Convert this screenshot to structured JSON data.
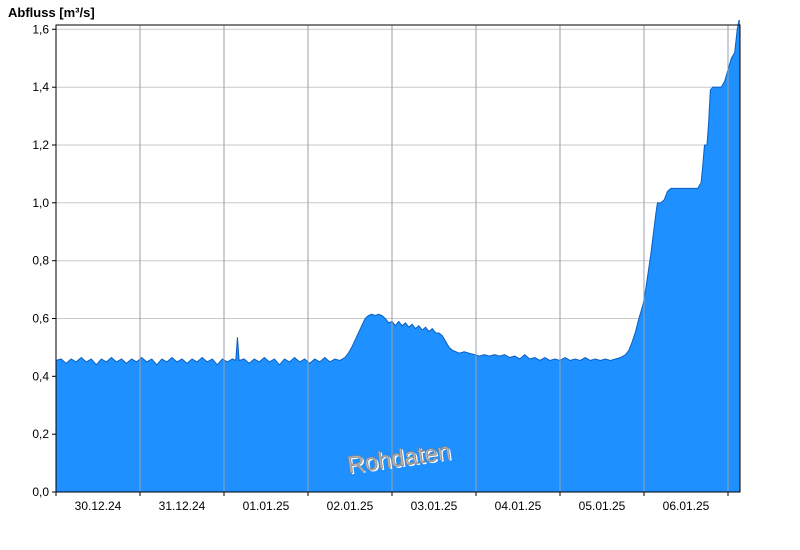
{
  "chart_data": {
    "type": "area",
    "title": "Abfluss [m³/s]",
    "ylabel": "Abfluss [m³/s]",
    "watermark": "Rohdaten",
    "series_name": "Abfluss",
    "xlim": [
      0,
      8.143
    ],
    "ylim": [
      0,
      1.615
    ],
    "x_unit": "days from 30.12.24 00:00",
    "grid": true,
    "y_ticks": [
      0,
      0.2,
      0.4,
      0.6,
      0.8,
      1.0,
      1.2,
      1.4,
      1.6
    ],
    "y_tick_labels": [
      "0,0",
      "0,2",
      "0,4",
      "0,6",
      "0,8",
      "1,0",
      "1,2",
      "1,4",
      "1,6"
    ],
    "x_day_boundaries": [
      0,
      1,
      2,
      3,
      4,
      5,
      6,
      7,
      8
    ],
    "x_label_centers": [
      0.5,
      1.5,
      2.5,
      3.5,
      4.5,
      5.5,
      6.5,
      7.5
    ],
    "x_tick_labels": [
      "30.12.24",
      "31.12.24",
      "01.01.25",
      "02.01.25",
      "03.01.25",
      "04.01.25",
      "05.01.25",
      "06.01.25"
    ],
    "colors": {
      "fill": "#1E90FF",
      "stroke": "#0C5FBF",
      "grid": "#c9c9c9",
      "vgrid": "#98a2ac",
      "axis": "#000000",
      "watermark_fill": "#b3b3b3",
      "watermark_stroke": "#7f7f7f"
    },
    "points": [
      [
        0.0,
        0.455
      ],
      [
        0.06,
        0.46
      ],
      [
        0.12,
        0.445
      ],
      [
        0.18,
        0.46
      ],
      [
        0.24,
        0.45
      ],
      [
        0.3,
        0.465
      ],
      [
        0.36,
        0.45
      ],
      [
        0.42,
        0.46
      ],
      [
        0.48,
        0.44
      ],
      [
        0.54,
        0.46
      ],
      [
        0.6,
        0.45
      ],
      [
        0.66,
        0.465
      ],
      [
        0.72,
        0.45
      ],
      [
        0.78,
        0.46
      ],
      [
        0.84,
        0.445
      ],
      [
        0.9,
        0.46
      ],
      [
        0.96,
        0.45
      ],
      [
        1.02,
        0.465
      ],
      [
        1.08,
        0.45
      ],
      [
        1.14,
        0.46
      ],
      [
        1.2,
        0.44
      ],
      [
        1.26,
        0.46
      ],
      [
        1.32,
        0.45
      ],
      [
        1.38,
        0.465
      ],
      [
        1.44,
        0.45
      ],
      [
        1.5,
        0.46
      ],
      [
        1.56,
        0.445
      ],
      [
        1.62,
        0.46
      ],
      [
        1.68,
        0.45
      ],
      [
        1.74,
        0.465
      ],
      [
        1.8,
        0.45
      ],
      [
        1.86,
        0.46
      ],
      [
        1.92,
        0.44
      ],
      [
        1.98,
        0.46
      ],
      [
        2.04,
        0.45
      ],
      [
        2.1,
        0.46
      ],
      [
        2.14,
        0.455
      ],
      [
        2.16,
        0.535
      ],
      [
        2.18,
        0.455
      ],
      [
        2.24,
        0.46
      ],
      [
        2.3,
        0.445
      ],
      [
        2.36,
        0.46
      ],
      [
        2.42,
        0.45
      ],
      [
        2.48,
        0.465
      ],
      [
        2.54,
        0.45
      ],
      [
        2.6,
        0.46
      ],
      [
        2.66,
        0.44
      ],
      [
        2.72,
        0.46
      ],
      [
        2.78,
        0.45
      ],
      [
        2.84,
        0.465
      ],
      [
        2.9,
        0.45
      ],
      [
        2.96,
        0.46
      ],
      [
        3.02,
        0.445
      ],
      [
        3.08,
        0.46
      ],
      [
        3.14,
        0.45
      ],
      [
        3.2,
        0.465
      ],
      [
        3.26,
        0.45
      ],
      [
        3.32,
        0.46
      ],
      [
        3.38,
        0.455
      ],
      [
        3.44,
        0.465
      ],
      [
        3.48,
        0.48
      ],
      [
        3.52,
        0.5
      ],
      [
        3.56,
        0.525
      ],
      [
        3.6,
        0.55
      ],
      [
        3.64,
        0.575
      ],
      [
        3.68,
        0.6
      ],
      [
        3.72,
        0.61
      ],
      [
        3.76,
        0.615
      ],
      [
        3.8,
        0.61
      ],
      [
        3.84,
        0.615
      ],
      [
        3.88,
        0.61
      ],
      [
        3.92,
        0.6
      ],
      [
        3.96,
        0.585
      ],
      [
        4.0,
        0.59
      ],
      [
        4.04,
        0.575
      ],
      [
        4.08,
        0.59
      ],
      [
        4.12,
        0.575
      ],
      [
        4.16,
        0.585
      ],
      [
        4.2,
        0.57
      ],
      [
        4.24,
        0.58
      ],
      [
        4.28,
        0.565
      ],
      [
        4.32,
        0.575
      ],
      [
        4.36,
        0.56
      ],
      [
        4.4,
        0.57
      ],
      [
        4.44,
        0.555
      ],
      [
        4.48,
        0.565
      ],
      [
        4.52,
        0.55
      ],
      [
        4.56,
        0.55
      ],
      [
        4.6,
        0.54
      ],
      [
        4.64,
        0.52
      ],
      [
        4.68,
        0.5
      ],
      [
        4.72,
        0.49
      ],
      [
        4.76,
        0.485
      ],
      [
        4.8,
        0.48
      ],
      [
        4.86,
        0.485
      ],
      [
        4.92,
        0.48
      ],
      [
        4.98,
        0.475
      ],
      [
        5.04,
        0.47
      ],
      [
        5.1,
        0.475
      ],
      [
        5.16,
        0.47
      ],
      [
        5.22,
        0.475
      ],
      [
        5.28,
        0.47
      ],
      [
        5.34,
        0.475
      ],
      [
        5.4,
        0.465
      ],
      [
        5.46,
        0.47
      ],
      [
        5.52,
        0.46
      ],
      [
        5.58,
        0.475
      ],
      [
        5.64,
        0.46
      ],
      [
        5.7,
        0.465
      ],
      [
        5.76,
        0.455
      ],
      [
        5.82,
        0.465
      ],
      [
        5.88,
        0.455
      ],
      [
        5.94,
        0.46
      ],
      [
        6.0,
        0.455
      ],
      [
        6.06,
        0.465
      ],
      [
        6.12,
        0.455
      ],
      [
        6.18,
        0.46
      ],
      [
        6.24,
        0.455
      ],
      [
        6.3,
        0.465
      ],
      [
        6.36,
        0.455
      ],
      [
        6.42,
        0.46
      ],
      [
        6.48,
        0.455
      ],
      [
        6.54,
        0.46
      ],
      [
        6.6,
        0.455
      ],
      [
        6.66,
        0.46
      ],
      [
        6.72,
        0.465
      ],
      [
        6.78,
        0.475
      ],
      [
        6.82,
        0.49
      ],
      [
        6.86,
        0.52
      ],
      [
        6.9,
        0.555
      ],
      [
        6.93,
        0.59
      ],
      [
        6.96,
        0.62
      ],
      [
        6.99,
        0.65
      ],
      [
        7.02,
        0.7
      ],
      [
        7.05,
        0.76
      ],
      [
        7.08,
        0.82
      ],
      [
        7.11,
        0.89
      ],
      [
        7.14,
        0.96
      ],
      [
        7.16,
        1.0
      ],
      [
        7.2,
        1.0
      ],
      [
        7.24,
        1.01
      ],
      [
        7.28,
        1.04
      ],
      [
        7.32,
        1.05
      ],
      [
        7.4,
        1.05
      ],
      [
        7.48,
        1.05
      ],
      [
        7.56,
        1.05
      ],
      [
        7.64,
        1.05
      ],
      [
        7.68,
        1.07
      ],
      [
        7.7,
        1.13
      ],
      [
        7.72,
        1.2
      ],
      [
        7.75,
        1.2
      ],
      [
        7.77,
        1.28
      ],
      [
        7.79,
        1.39
      ],
      [
        7.82,
        1.4
      ],
      [
        7.87,
        1.4
      ],
      [
        7.92,
        1.4
      ],
      [
        7.96,
        1.42
      ],
      [
        8.0,
        1.46
      ],
      [
        8.04,
        1.5
      ],
      [
        8.08,
        1.52
      ],
      [
        8.11,
        1.6
      ],
      [
        8.13,
        1.63
      ],
      [
        8.143,
        1.63
      ]
    ]
  }
}
